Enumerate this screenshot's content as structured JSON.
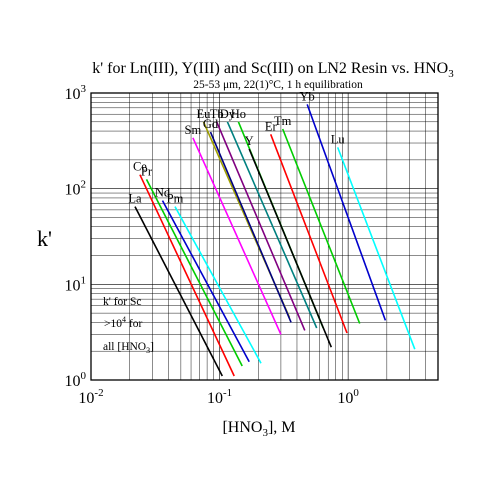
{
  "chart_data": {
    "type": "line",
    "title": "k' for Ln(III), Y(III) and Sc(III) on LN2 Resin vs. HNO",
    "title_sub": "3",
    "subtitle": "25-53 μm, 22(1)°C, 1 h equilibration",
    "xlabel": "[HNO",
    "xlabel_sub": "3",
    "xlabel_tail": "], M",
    "ylabel": "k'",
    "xscale": "log",
    "yscale": "log",
    "xlim": [
      0.01,
      5
    ],
    "ylim": [
      1,
      1000
    ],
    "grid": true,
    "x_ticks": [
      {
        "base": "10",
        "exp": "-2"
      },
      {
        "base": "10",
        "exp": "-1"
      },
      {
        "base": "10",
        "exp": "0"
      }
    ],
    "y_ticks": [
      {
        "base": "10",
        "exp": "0"
      },
      {
        "base": "10",
        "exp": "1"
      },
      {
        "base": "10",
        "exp": "2"
      },
      {
        "base": "10",
        "exp": "3"
      }
    ],
    "annotation": {
      "line1": "k' for Sc",
      "line2_pre": ">10",
      "line2_sup": "4",
      "line2_post": " for",
      "line3_pre": "all [HNO",
      "line3_sub": "3",
      "line3_post": "]"
    },
    "series": [
      {
        "name": "La",
        "color": "#000000",
        "x": [
          0.022,
          0.105
        ],
        "y": [
          65,
          1.1
        ]
      },
      {
        "name": "Ce",
        "color": "#ff0000",
        "x": [
          0.024,
          0.13
        ],
        "y": [
          140,
          1.1
        ]
      },
      {
        "name": "Pr",
        "color": "#00cc00",
        "x": [
          0.027,
          0.15
        ],
        "y": [
          125,
          1.4
        ]
      },
      {
        "name": "Nd",
        "color": "#0000cc",
        "x": [
          0.036,
          0.17
        ],
        "y": [
          75,
          1.55
        ]
      },
      {
        "name": "Pm",
        "color": "#00ffff",
        "x": [
          0.045,
          0.21
        ],
        "y": [
          65,
          1.5
        ]
      },
      {
        "name": "Sm",
        "color": "#ff00ff",
        "x": [
          0.062,
          0.3
        ],
        "y": [
          340,
          3.0
        ]
      },
      {
        "name": "Eu",
        "color": "#a0a000",
        "x": [
          0.075,
          0.35
        ],
        "y": [
          500,
          4.5
        ]
      },
      {
        "name": "Gd",
        "color": "#000080",
        "x": [
          0.085,
          0.36
        ],
        "y": [
          390,
          4.0
        ]
      },
      {
        "name": "Tb",
        "color": "#800080",
        "x": [
          0.095,
          0.46
        ],
        "y": [
          500,
          3.3
        ]
      },
      {
        "name": "Dy",
        "color": "#008080",
        "x": [
          0.115,
          0.57
        ],
        "y": [
          500,
          3.5
        ]
      },
      {
        "name": "Ho",
        "color": "#00cc00",
        "x": [
          0.14,
          0.64
        ],
        "y": [
          500,
          3.5
        ]
      },
      {
        "name": "Y",
        "color": "#000000",
        "x": [
          0.17,
          0.74
        ],
        "y": [
          260,
          2.2
        ]
      },
      {
        "name": "Er",
        "color": "#ff0000",
        "x": [
          0.25,
          0.98
        ],
        "y": [
          370,
          3.1
        ]
      },
      {
        "name": "Tm",
        "color": "#00cc00",
        "x": [
          0.31,
          1.23
        ],
        "y": [
          420,
          3.9
        ]
      },
      {
        "name": "Yb",
        "color": "#0000cc",
        "x": [
          0.48,
          1.95
        ],
        "y": [
          760,
          4.2
        ]
      },
      {
        "name": "Lu",
        "color": "#00ffff",
        "x": [
          0.83,
          3.3
        ],
        "y": [
          270,
          2.1
        ]
      }
    ]
  }
}
